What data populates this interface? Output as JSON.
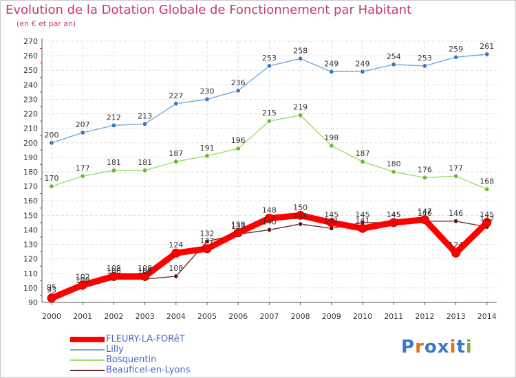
{
  "title": "Evolution de la Dotation Globale de Fonctionnement par Habitant",
  "subtitle": "(en € et par an)",
  "logo": {
    "text": "Proxiti",
    "colors": [
      "#3c78c8",
      "#e07020",
      "#3c78c8",
      "#3c78c8",
      "#e07020",
      "#3c78c8",
      "#80b030"
    ]
  },
  "chart_data": {
    "type": "line",
    "title": "Evolution de la Dotation Globale de Fonctionnement par Habitant",
    "subtitle": "(en € et par an)",
    "xlabel": "",
    "ylabel": "",
    "ylim": [
      90,
      270
    ],
    "yticks": [
      90,
      100,
      110,
      120,
      130,
      140,
      150,
      160,
      170,
      180,
      190,
      200,
      210,
      220,
      230,
      240,
      250,
      260,
      270
    ],
    "grid": true,
    "legend_position": "bottom-left",
    "x": [
      "2000",
      "2001",
      "2002",
      "2003",
      "2004",
      "2005",
      "2006",
      "2007",
      "2008",
      "2009",
      "2010",
      "2011",
      "2012",
      "2013",
      "2014"
    ],
    "series": [
      {
        "name": "Beauficel-en-Lyons",
        "color": "#7a2b2b",
        "values": [
          95,
          100,
          106,
          106,
          108,
          132,
          137,
          140,
          144,
          141,
          145,
          145,
          146,
          146,
          142
        ],
        "labels": [
          "95",
          "100",
          "106",
          "106",
          "108",
          "132",
          "137",
          "140",
          "144",
          "141",
          "145",
          "145",
          "146",
          "146",
          "142"
        ]
      },
      {
        "name": "Bosquentin",
        "color": "#99dd66",
        "values": [
          170,
          177,
          181,
          181,
          187,
          191,
          196,
          215,
          219,
          198,
          187,
          180,
          176,
          177,
          168
        ],
        "labels": [
          "170",
          "177",
          "181",
          "181",
          "187",
          "191",
          "196",
          "215",
          "219",
          "198",
          "187",
          "180",
          "176",
          "177",
          "168"
        ]
      },
      {
        "name": "Lilly",
        "color": "#6fa8dc",
        "values": [
          200,
          207,
          212,
          213,
          227,
          230,
          236,
          253,
          258,
          249,
          249,
          254,
          253,
          259,
          261
        ],
        "labels": [
          "200",
          "207",
          "212",
          "213",
          "227",
          "230",
          "236",
          "253",
          "258",
          "249",
          "249",
          "254",
          "253",
          "259",
          "261"
        ]
      },
      {
        "name": "FLEURY-LA-FORêT",
        "color": "#ff0000",
        "values": [
          93,
          102,
          108,
          108,
          124,
          127,
          138,
          148,
          150,
          145,
          141,
          145,
          147,
          124,
          145
        ],
        "labels": [
          "93",
          "102",
          "108",
          "108",
          "124",
          "127",
          "138",
          "148",
          "150",
          "145",
          "141",
          "145",
          "147",
          "124",
          "145"
        ]
      }
    ],
    "legend": [
      "FLEURY-LA-FORêT",
      "Lilly",
      "Bosquentin",
      "Beauficel-en-Lyons"
    ]
  }
}
